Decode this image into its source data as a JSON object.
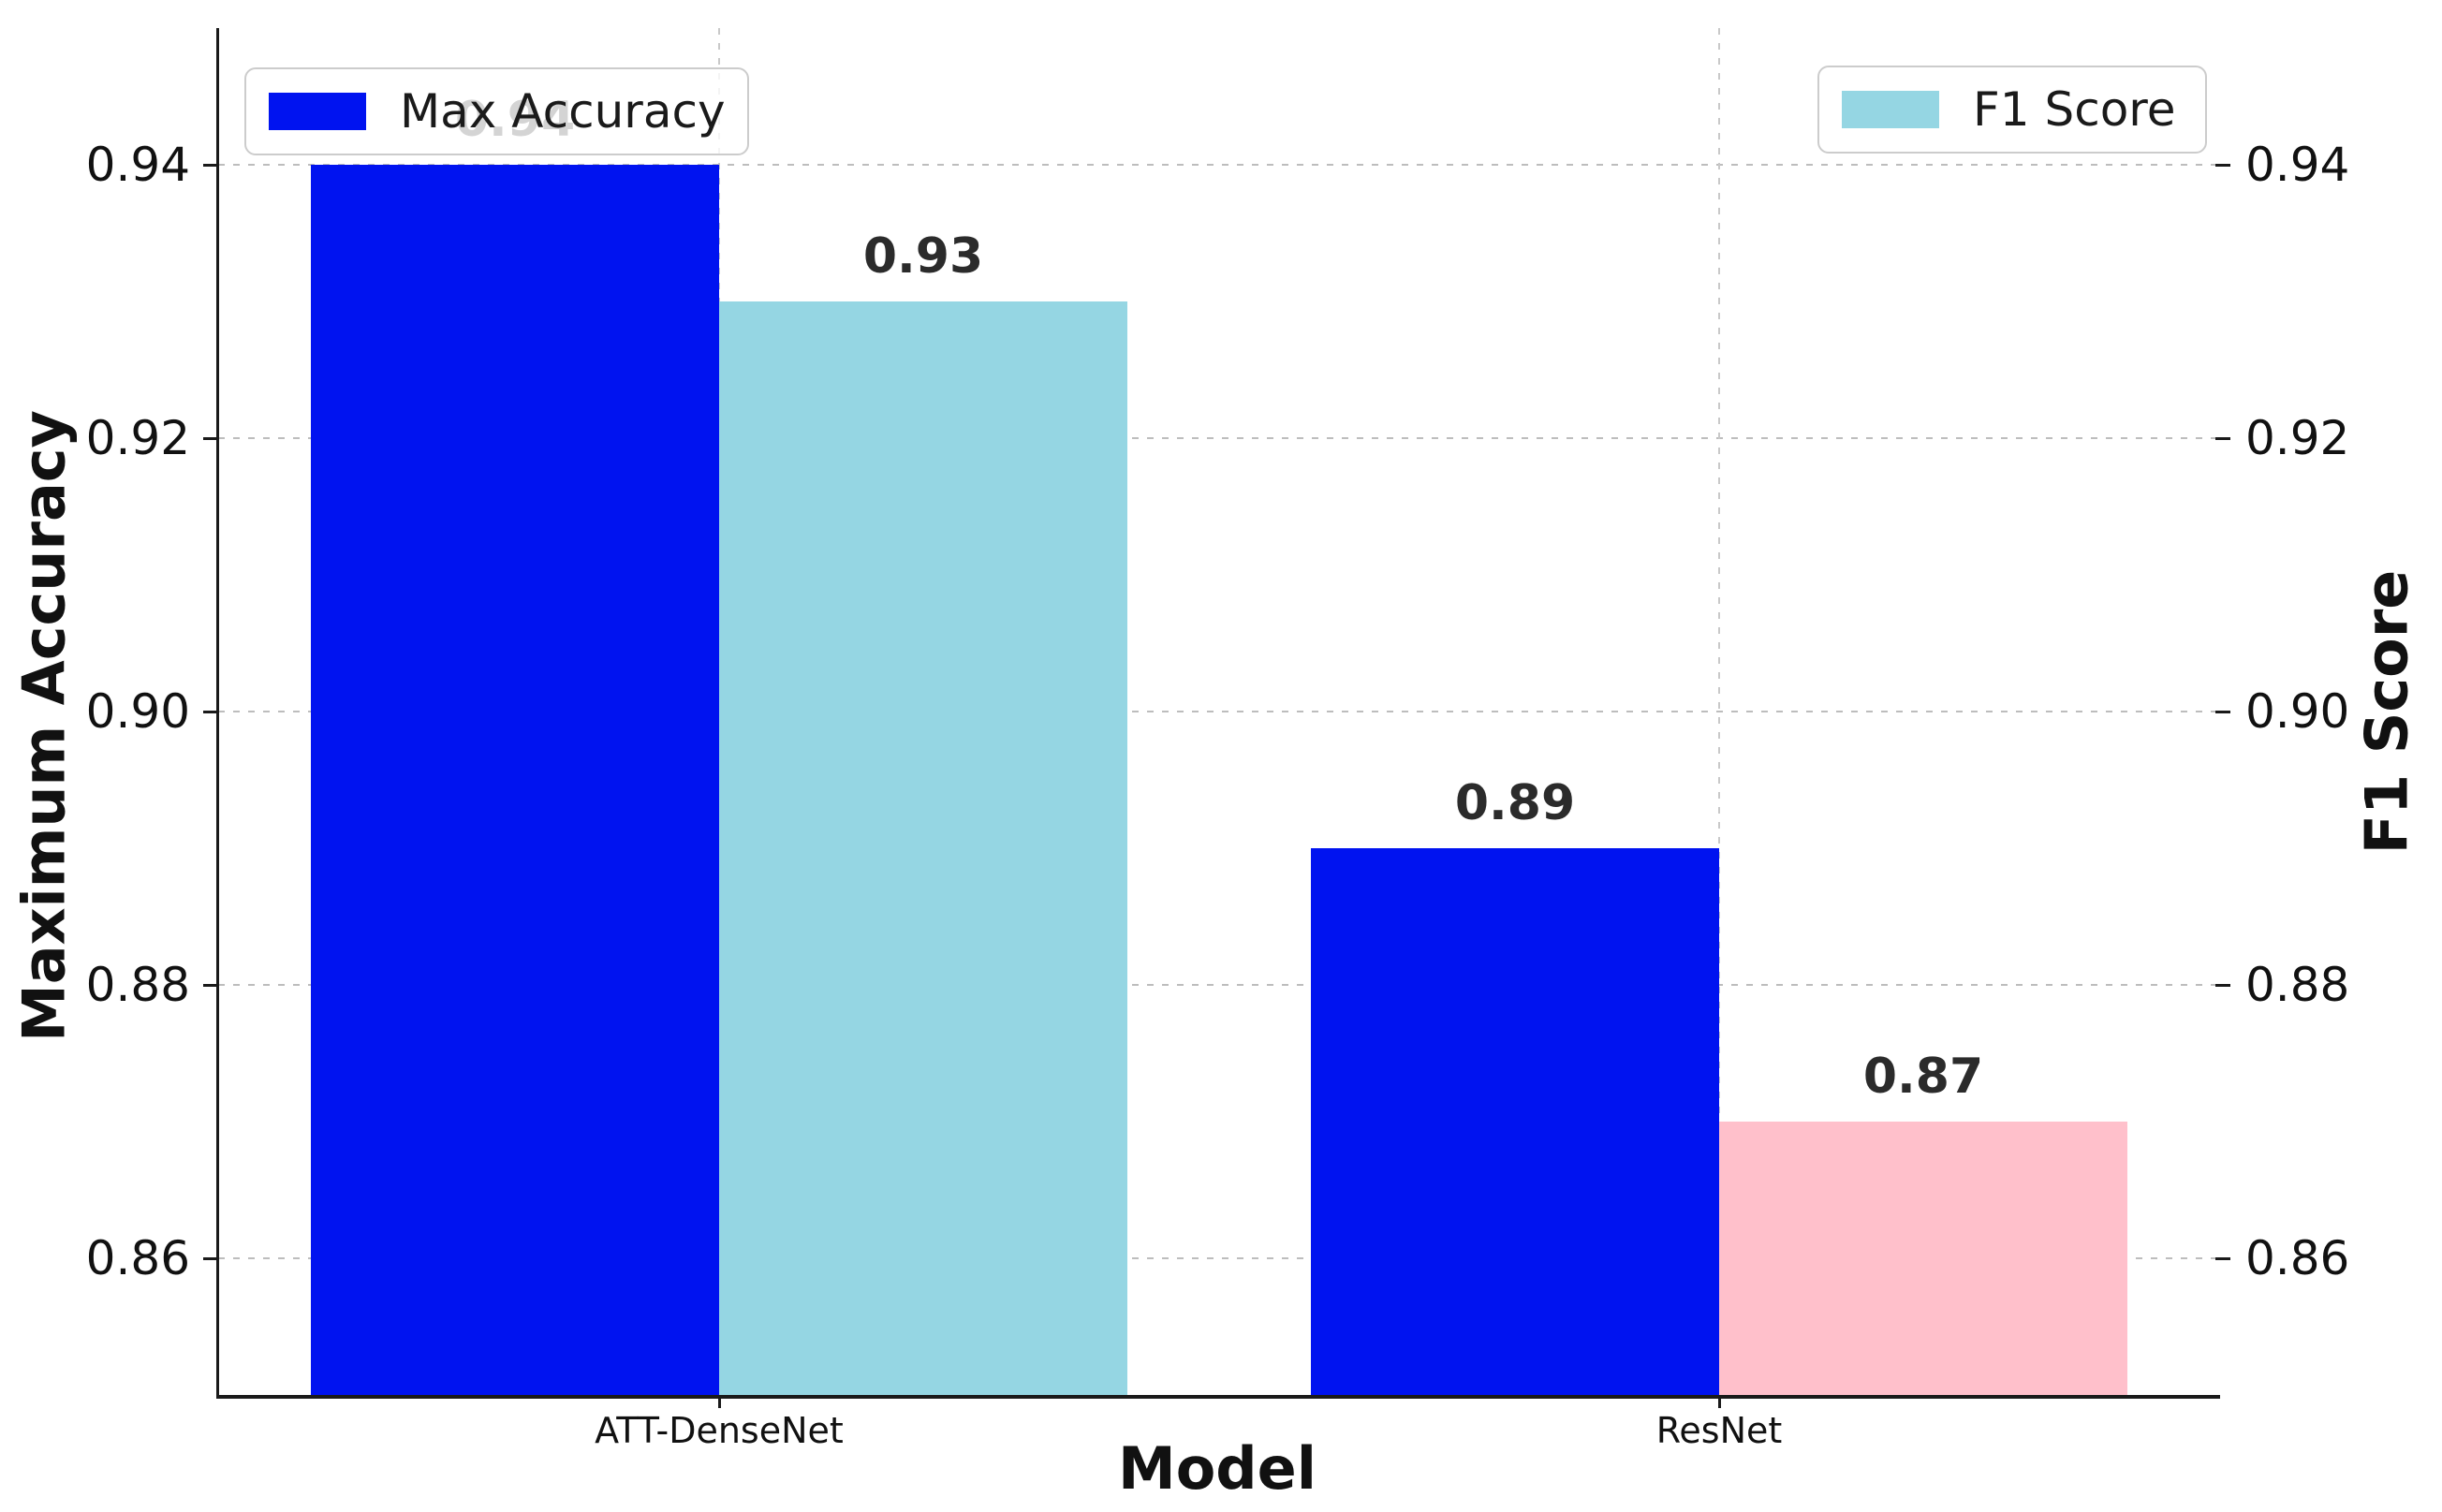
{
  "chart_data": {
    "type": "bar",
    "categories": [
      "ATT-DenseNet",
      "ResNet"
    ],
    "series": [
      {
        "name": "Max Accuracy",
        "axis": "left",
        "color": "#0013f0",
        "values": [
          0.94,
          0.89
        ],
        "labels": [
          "0.94",
          "0.89"
        ]
      },
      {
        "name": "F1 Score",
        "axis": "right",
        "colors": [
          "#95d6e3",
          "#ffc0cb"
        ],
        "values": [
          0.93,
          0.87
        ],
        "labels": [
          "0.93",
          "0.87"
        ]
      }
    ],
    "xlabel": "Model",
    "ylabel_left": "Maximum Accuracy",
    "ylabel_right": "F1 Score",
    "ylim": [
      0.85,
      0.95
    ],
    "yticks": [
      0.86,
      0.88,
      0.9,
      0.92,
      0.94
    ],
    "ytick_labels": [
      "0.86",
      "0.88",
      "0.90",
      "0.92",
      "0.94"
    ],
    "grid": true,
    "legend_left": {
      "label": "Max Accuracy",
      "color": "#0013f0"
    },
    "legend_right": {
      "label": "F1 Score",
      "color": "#95d6e3"
    }
  },
  "colors": {
    "max_accuracy_bar": "#0013f0",
    "f1_att_densenet_bar": "#95d6e3",
    "f1_resnet_bar": "#ffc0cb",
    "gridline": "#bdbdbd",
    "spine": "#1a1a1a",
    "bar_label": "#2b2b2b",
    "washed_bar_label_under_legend": "#c9c9c9"
  }
}
